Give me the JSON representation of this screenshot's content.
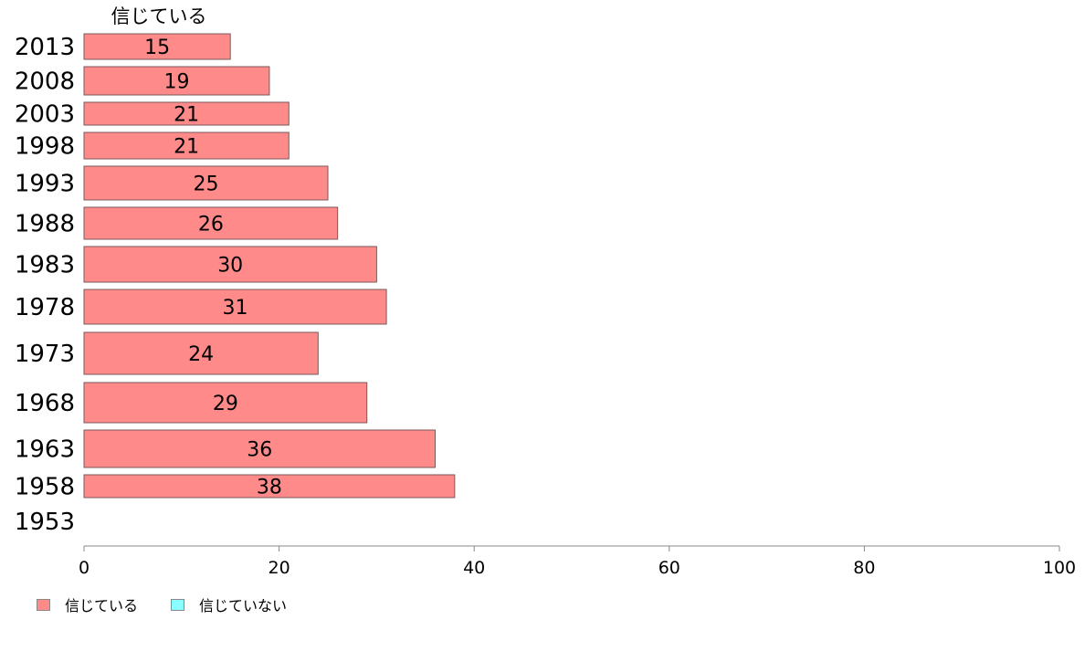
{
  "chart_data": {
    "type": "bar",
    "orientation": "horizontal",
    "series_label": "信じている",
    "categories": [
      "2013",
      "2008",
      "2003",
      "1998",
      "1993",
      "1988",
      "1983",
      "1978",
      "1973",
      "1968",
      "1963",
      "1958",
      "1953"
    ],
    "series": [
      {
        "name": "信じている",
        "color": "#ff8a8a",
        "values": [
          15,
          19,
          21,
          21,
          25,
          26,
          30,
          31,
          24,
          29,
          36,
          38,
          null
        ]
      }
    ],
    "data_labels": [
      "15",
      "19",
      "21",
      "21",
      "25",
      "26",
      "30",
      "31",
      "24",
      "29",
      "36",
      "38",
      ""
    ],
    "xlim": [
      0,
      100
    ],
    "xticks": [
      0,
      20,
      40,
      60,
      80,
      100
    ],
    "legend": [
      {
        "label": "信じている",
        "color": "#ff8a8a"
      },
      {
        "label": "信じていない",
        "color": "#8affff"
      }
    ],
    "legend_position": "bottom-left",
    "grid": false
  }
}
